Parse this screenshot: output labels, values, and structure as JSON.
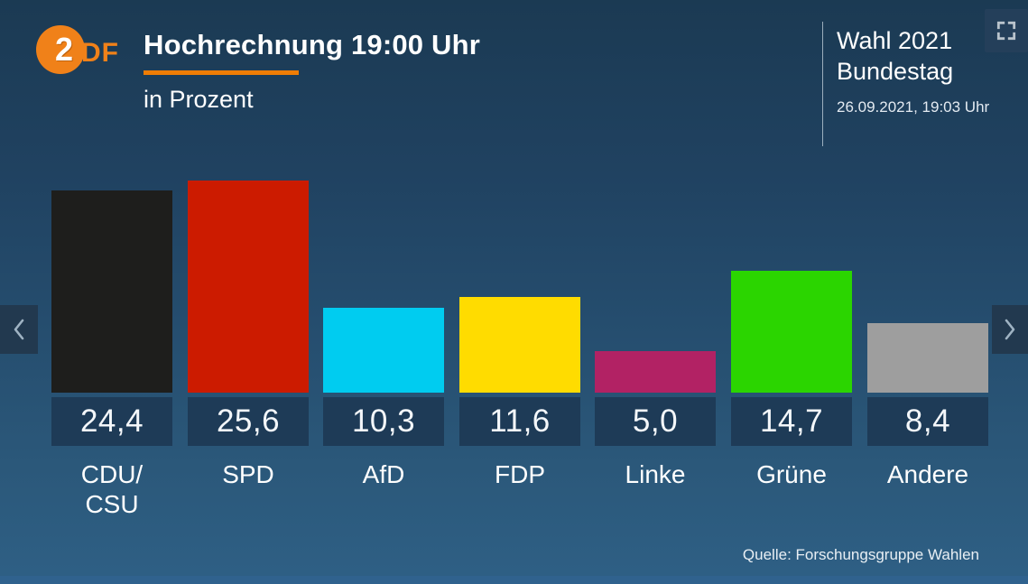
{
  "header": {
    "logo_text_2": "2",
    "logo_text_df": "DF",
    "title": "Hochrechnung 19:00 Uhr",
    "subtitle": "in Prozent",
    "accent_color": "#ef7d05"
  },
  "meta": {
    "election_line1": "Wahl 2021",
    "election_line2": "Bundestag",
    "timestamp": "26.09.2021, 19:03 Uhr"
  },
  "chart_data": {
    "type": "bar",
    "title": "Hochrechnung 19:00 Uhr",
    "unit": "Prozent",
    "categories": [
      "CDU/CSU",
      "SPD",
      "AfD",
      "FDP",
      "Linke",
      "Grüne",
      "Andere"
    ],
    "display_labels": [
      "CDU/\nCSU",
      "SPD",
      "AfD",
      "FDP",
      "Linke",
      "Grüne",
      "Andere"
    ],
    "ids": [
      "cdu-csu",
      "spd",
      "afd",
      "fdp",
      "linke",
      "gruene",
      "andere"
    ],
    "values": [
      24.4,
      25.6,
      10.3,
      11.6,
      5.0,
      14.7,
      8.4
    ],
    "value_labels": [
      "24,4",
      "25,6",
      "10,3",
      "11,6",
      "5,0",
      "14,7",
      "8,4"
    ],
    "colors": [
      "#1e1e1c",
      "#cc1b00",
      "#00ccf0",
      "#ffdc00",
      "#b22264",
      "#2bd500",
      "#9e9e9e"
    ],
    "ylim": [
      0,
      26
    ],
    "grid": false,
    "legend": "none",
    "source": "Quelle: Forschungsgruppe Wahlen"
  },
  "nav": {
    "prev_label": "previous slide",
    "next_label": "next slide",
    "fullscreen_label": "fullscreen"
  },
  "style": {
    "background_top": "#1b3a53",
    "background_bottom": "#2e5f84",
    "badge_background": "#1e3b57",
    "bottom_bar": "#30628e"
  }
}
